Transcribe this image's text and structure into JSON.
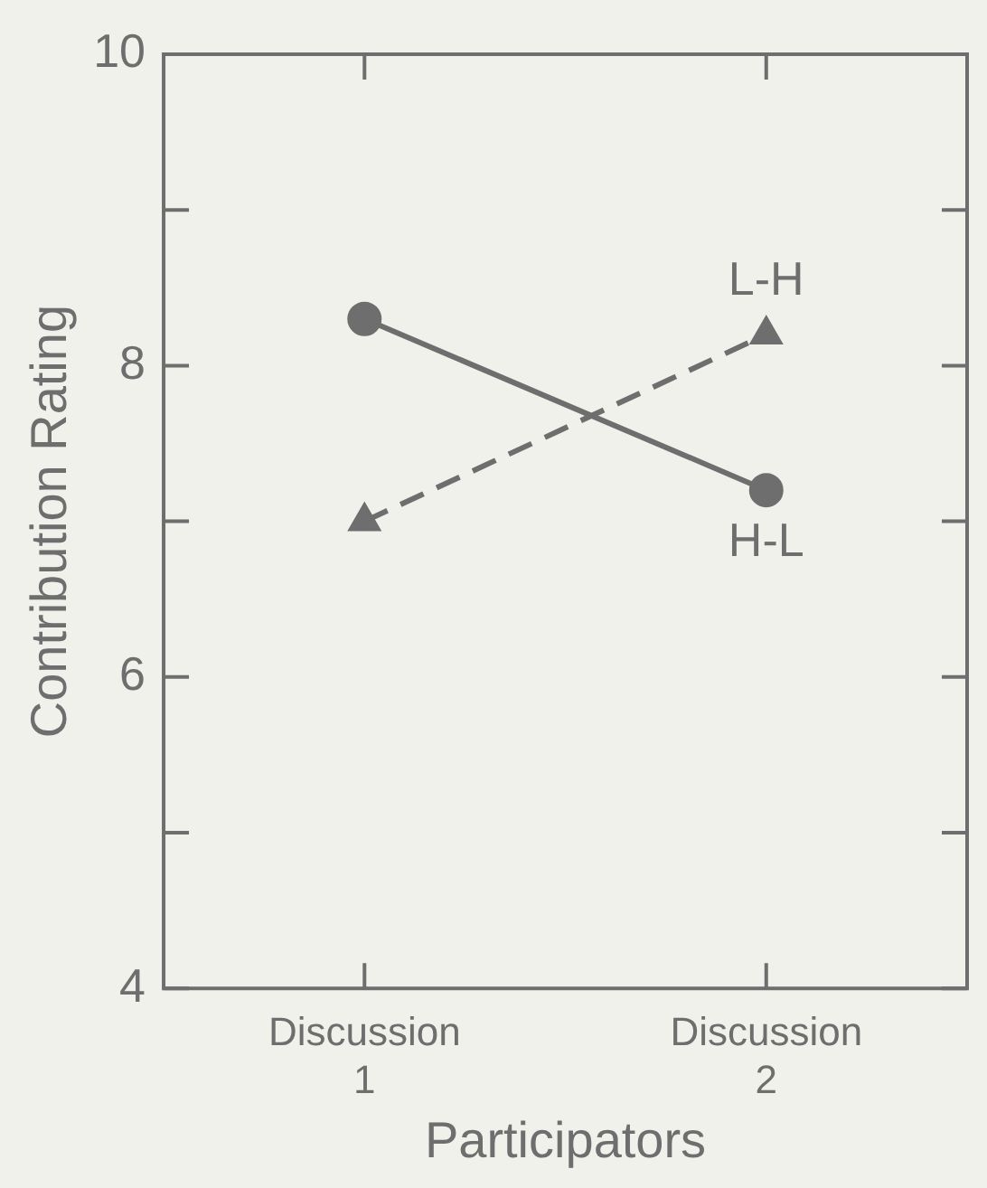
{
  "chart_data": {
    "type": "line",
    "xlabel": "Participators",
    "ylabel": "Contribution Rating",
    "categories": [
      "Discussion 1",
      "Discussion 2"
    ],
    "series": [
      {
        "name": "H-L",
        "color": "#6e6e6e",
        "values": [
          8.3,
          7.2
        ],
        "marker": "circle",
        "line_style": "solid"
      },
      {
        "name": "L-H",
        "color": "#6e6e6e",
        "values": [
          7.0,
          8.2
        ],
        "marker": "triangle",
        "line_style": "dashed"
      }
    ],
    "ylim": [
      4,
      10
    ],
    "yticks": [
      4,
      {
        "value": 5,
        "label": null
      },
      6,
      {
        "value": 7,
        "label": null
      },
      8,
      {
        "value": 9,
        "label": null
      },
      10
    ],
    "grid": false,
    "legend": false
  }
}
